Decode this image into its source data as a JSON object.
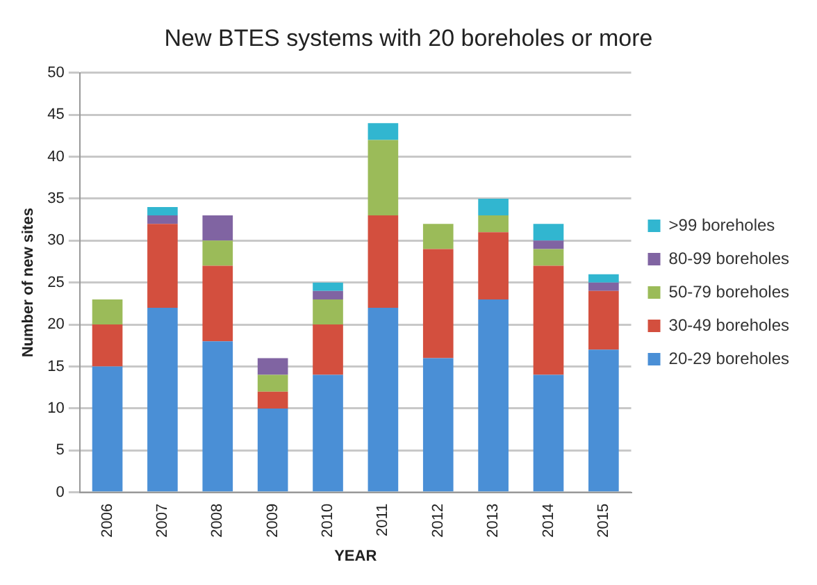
{
  "chart_data": {
    "type": "bar",
    "title": "New BTES systems with 20 boreholes or more",
    "xlabel": "YEAR",
    "ylabel": "Number of new sites",
    "categories": [
      "2006",
      "2007",
      "2008",
      "2009",
      "2010",
      "2011",
      "2012",
      "2013",
      "2014",
      "2015"
    ],
    "series": [
      {
        "name": "20-29 boreholes",
        "color": "#4a8fd6",
        "values": [
          15,
          22,
          18,
          10,
          14,
          22,
          16,
          23,
          14,
          17
        ]
      },
      {
        "name": "30-49 boreholes",
        "color": "#d34f3e",
        "values": [
          5,
          10,
          9,
          2,
          6,
          11,
          13,
          8,
          13,
          7
        ]
      },
      {
        "name": "50-79 boreholes",
        "color": "#9bbb59",
        "values": [
          3,
          0,
          3,
          2,
          3,
          9,
          3,
          2,
          2,
          0
        ]
      },
      {
        "name": "80-99 boreholes",
        "color": "#8064a2",
        "values": [
          0,
          1,
          3,
          2,
          1,
          0,
          0,
          0,
          1,
          1
        ]
      },
      {
        "name": ">99 boreholes",
        "color": "#31b6d0",
        "values": [
          0,
          1,
          0,
          0,
          1,
          2,
          0,
          2,
          2,
          1
        ]
      }
    ],
    "stacked": true,
    "ylim": [
      0,
      50
    ],
    "yticks": [
      0,
      5,
      10,
      15,
      20,
      25,
      30,
      35,
      40,
      45,
      50
    ],
    "grid": "y",
    "legend": "right"
  }
}
